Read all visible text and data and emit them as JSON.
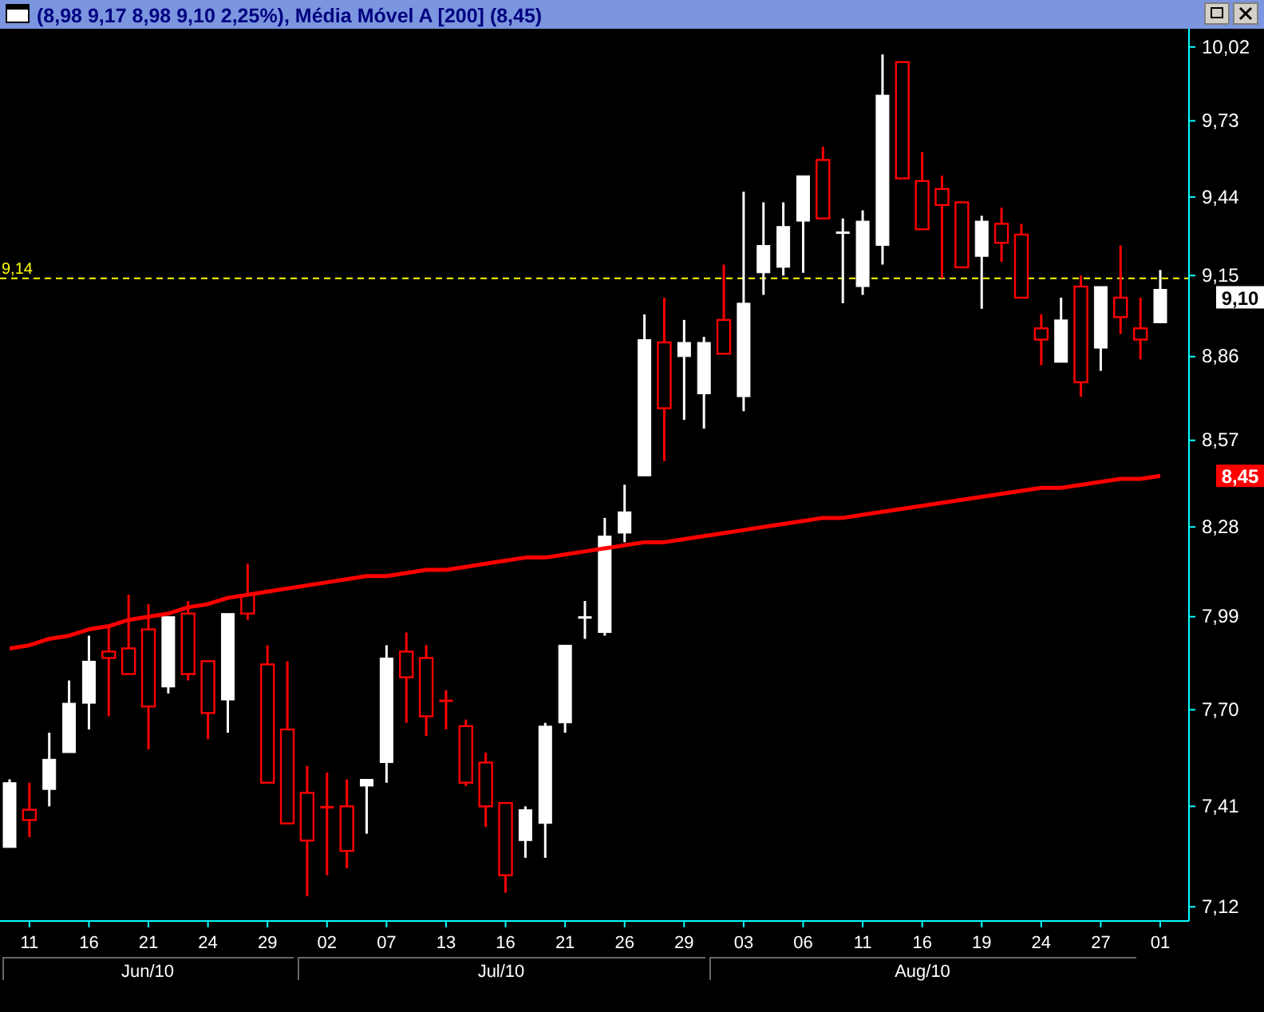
{
  "chart_data": {
    "type": "candlestick",
    "title": "(8,98  9,17  8,98  9,10  2,25%), Média Móvel A [200] (8,45)",
    "categories": [
      null,
      "11",
      null,
      null,
      "16",
      null,
      null,
      "21",
      null,
      null,
      "24",
      null,
      null,
      "29",
      null,
      null,
      "02",
      null,
      null,
      "07",
      null,
      null,
      "13",
      null,
      null,
      "16",
      null,
      null,
      "21",
      null,
      null,
      "26",
      null,
      null,
      "29",
      null,
      null,
      "03",
      null,
      null,
      "06",
      null,
      null,
      "11",
      null,
      null,
      "16",
      null,
      null,
      "19",
      null,
      null,
      "24",
      null,
      null,
      "27",
      null,
      null,
      "01"
    ],
    "ohlc": [
      [
        7.29,
        7.49,
        7.29,
        7.48
      ],
      [
        7.4,
        7.48,
        7.32,
        7.37
      ],
      [
        7.46,
        7.63,
        7.41,
        7.55
      ],
      [
        7.57,
        7.79,
        7.57,
        7.72
      ],
      [
        7.72,
        7.93,
        7.64,
        7.85
      ],
      [
        7.88,
        7.96,
        7.68,
        7.86
      ],
      [
        7.89,
        8.06,
        7.81,
        7.81
      ],
      [
        7.95,
        8.03,
        7.58,
        7.71
      ],
      [
        7.77,
        7.99,
        7.75,
        7.99
      ],
      [
        8.0,
        8.04,
        7.79,
        7.81
      ],
      [
        7.85,
        7.85,
        7.61,
        7.69
      ],
      [
        7.73,
        8.0,
        7.63,
        8.0
      ],
      [
        8.06,
        8.16,
        7.98,
        8.0
      ],
      [
        7.84,
        7.9,
        7.48,
        7.48
      ],
      [
        7.64,
        7.85,
        7.36,
        7.36
      ],
      [
        7.45,
        7.53,
        7.15,
        7.31
      ],
      [
        7.41,
        7.51,
        7.21,
        7.41
      ],
      [
        7.41,
        7.49,
        7.23,
        7.28
      ],
      [
        7.47,
        7.49,
        7.33,
        7.49
      ],
      [
        7.54,
        7.9,
        7.48,
        7.86
      ],
      [
        7.88,
        7.94,
        7.66,
        7.8
      ],
      [
        7.86,
        7.9,
        7.62,
        7.68
      ],
      [
        7.73,
        7.76,
        7.64,
        7.73
      ],
      [
        7.65,
        7.67,
        7.47,
        7.48
      ],
      [
        7.54,
        7.57,
        7.35,
        7.41
      ],
      [
        7.42,
        7.42,
        7.16,
        7.21
      ],
      [
        7.31,
        7.41,
        7.26,
        7.4
      ],
      [
        7.36,
        7.66,
        7.26,
        7.65
      ],
      [
        7.66,
        7.9,
        7.63,
        7.9
      ],
      [
        7.99,
        8.04,
        7.92,
        7.99
      ],
      [
        7.94,
        8.31,
        7.93,
        8.25
      ],
      [
        8.26,
        8.42,
        8.23,
        8.33
      ],
      [
        8.45,
        9.01,
        8.45,
        8.92
      ],
      [
        8.91,
        9.07,
        8.5,
        8.68
      ],
      [
        8.86,
        8.99,
        8.64,
        8.91
      ],
      [
        8.73,
        8.93,
        8.61,
        8.91
      ],
      [
        8.99,
        9.19,
        8.87,
        8.87
      ],
      [
        8.72,
        9.46,
        8.67,
        9.05
      ],
      [
        9.16,
        9.42,
        9.08,
        9.26
      ],
      [
        9.18,
        9.42,
        9.15,
        9.33
      ],
      [
        9.35,
        9.52,
        9.16,
        9.52
      ],
      [
        9.58,
        9.63,
        9.36,
        9.36
      ],
      [
        9.31,
        9.36,
        9.05,
        9.31
      ],
      [
        9.11,
        9.39,
        9.08,
        9.35
      ],
      [
        9.26,
        9.99,
        9.19,
        9.83
      ],
      [
        9.96,
        9.96,
        9.51,
        9.51
      ],
      [
        9.5,
        9.61,
        9.32,
        9.32
      ],
      [
        9.47,
        9.52,
        9.14,
        9.41
      ],
      [
        9.42,
        9.42,
        9.18,
        9.18
      ],
      [
        9.22,
        9.37,
        9.03,
        9.35
      ],
      [
        9.34,
        9.4,
        9.2,
        9.27
      ],
      [
        9.3,
        9.34,
        9.07,
        9.07
      ],
      [
        8.96,
        9.01,
        8.83,
        8.92
      ],
      [
        8.84,
        9.07,
        8.84,
        8.99
      ],
      [
        9.11,
        9.15,
        8.72,
        8.77
      ],
      [
        8.89,
        9.11,
        8.81,
        9.11
      ],
      [
        9.07,
        9.26,
        8.94,
        9.0
      ],
      [
        8.96,
        9.07,
        8.85,
        8.92
      ],
      [
        8.98,
        9.17,
        8.98,
        9.1
      ]
    ],
    "colors": [
      "#ffffff",
      "#ff0000",
      "#ffffff",
      "#ffffff",
      "#ffffff",
      "#ff0000",
      "#ff0000",
      "#ff0000",
      "#ffffff",
      "#ff0000",
      "#ff0000",
      "#ffffff",
      "#ff0000",
      "#ff0000",
      "#ff0000",
      "#ff0000",
      "#ff0000",
      "#ff0000",
      "#ffffff",
      "#ffffff",
      "#ff0000",
      "#ff0000",
      "#ff0000",
      "#ff0000",
      "#ff0000",
      "#ff0000",
      "#ffffff",
      "#ffffff",
      "#ffffff",
      "#ffffff",
      "#ffffff",
      "#ffffff",
      "#ffffff",
      "#ff0000",
      "#ffffff",
      "#ffffff",
      "#ff0000",
      "#ffffff",
      "#ffffff",
      "#ffffff",
      "#ffffff",
      "#ff0000",
      "#ffffff",
      "#ffffff",
      "#ffffff",
      "#ff0000",
      "#ff0000",
      "#ff0000",
      "#ff0000",
      "#ffffff",
      "#ff0000",
      "#ff0000",
      "#ff0000",
      "#ffffff",
      "#ff0000",
      "#ffffff",
      "#ff0000",
      "#ff0000",
      "#ffffff"
    ],
    "series": [
      {
        "type": "line",
        "color": "#ff0000",
        "values": [
          7.89,
          7.9,
          7.92,
          7.93,
          7.95,
          7.96,
          7.98,
          7.99,
          8.0,
          8.02,
          8.03,
          8.05,
          8.06,
          8.07,
          8.08,
          8.09,
          8.1,
          8.11,
          8.12,
          8.12,
          8.13,
          8.14,
          8.14,
          8.15,
          8.16,
          8.17,
          8.18,
          8.18,
          8.19,
          8.2,
          8.21,
          8.22,
          8.23,
          8.23,
          8.24,
          8.25,
          8.26,
          8.27,
          8.28,
          8.29,
          8.3,
          8.31,
          8.31,
          8.32,
          8.33,
          8.34,
          8.35,
          8.36,
          8.37,
          8.38,
          8.39,
          8.4,
          8.41,
          8.41,
          8.42,
          8.43,
          8.44,
          8.44,
          8.45
        ]
      }
    ],
    "ylim": [
      7.08,
      10.08
    ],
    "yticks": [
      {
        "value": 7.12,
        "label": "7,12"
      },
      {
        "value": 7.41,
        "label": "7,41"
      },
      {
        "value": 7.7,
        "label": "7,70"
      },
      {
        "value": 7.99,
        "label": "7,99"
      },
      {
        "value": 8.28,
        "label": "8,28"
      },
      {
        "value": 8.57,
        "label": "8,57"
      },
      {
        "value": 8.86,
        "label": "8,86"
      },
      {
        "value": 9.15,
        "label": "9,15"
      },
      {
        "value": 9.44,
        "label": "9,44"
      },
      {
        "value": 9.73,
        "label": "9,73"
      },
      {
        "value": 10.02,
        "label": "10,02"
      }
    ],
    "log": "y",
    "grid": false,
    "ref_lines": [
      {
        "axis": "y",
        "value": 9.14,
        "label": "9,14",
        "color": "#ffff00",
        "line_style": "dashed"
      }
    ],
    "annotations": [
      "Jun/10",
      "Jul/10",
      "Aug/10",
      "9,10",
      "8,45"
    ]
  }
}
